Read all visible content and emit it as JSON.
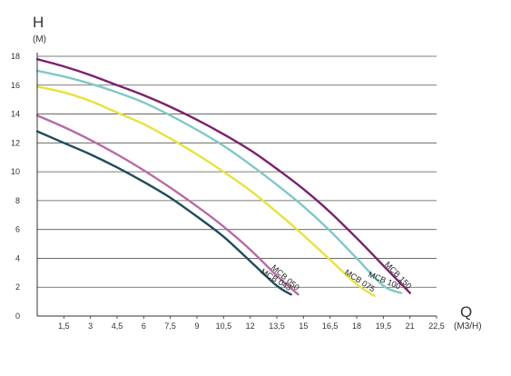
{
  "chart_data": {
    "type": "line",
    "title": "",
    "ylabel": "H",
    "yunit": "(M)",
    "xlabel": "Q",
    "xunit": "(M3/H)",
    "xlim": [
      0,
      22.5
    ],
    "ylim": [
      0,
      18
    ],
    "xticks": [
      "1,5",
      "3",
      "4,5",
      "6",
      "7,5",
      "9",
      "10,5",
      "12",
      "13,5",
      "15",
      "16,5",
      "18",
      "19,5",
      "21",
      "22,5"
    ],
    "yticks": [
      "0",
      "2",
      "4",
      "6",
      "8",
      "10",
      "12",
      "14",
      "16",
      "18"
    ],
    "grid": "horizontal",
    "legend": "none",
    "series": [
      {
        "name": "MCB 150",
        "color": "#7b1f6e",
        "x": [
          0,
          1.5,
          3,
          4.5,
          6,
          7.5,
          9,
          10.5,
          12,
          13.5,
          15,
          16.5,
          18,
          19.5,
          21
        ],
        "y": [
          17.8,
          17.3,
          16.7,
          16.0,
          15.3,
          14.5,
          13.6,
          12.6,
          11.5,
          10.2,
          8.8,
          7.2,
          5.4,
          3.5,
          1.6
        ]
      },
      {
        "name": "MCB 100",
        "color": "#7fc8c8",
        "x": [
          0,
          1.5,
          3,
          4.5,
          6,
          7.5,
          9,
          10.5,
          12,
          13.5,
          15,
          16.5,
          18,
          19.5,
          20.5
        ],
        "y": [
          17.0,
          16.6,
          16.1,
          15.5,
          14.8,
          13.9,
          12.9,
          11.8,
          10.5,
          9.1,
          7.6,
          5.9,
          4.0,
          2.1,
          1.6
        ]
      },
      {
        "name": "MCB 075",
        "color": "#e8e23a",
        "x": [
          0,
          1.5,
          3,
          4.5,
          6,
          7.5,
          9,
          10.5,
          12,
          13.5,
          15,
          16.5,
          18,
          19
        ],
        "y": [
          15.9,
          15.5,
          14.9,
          14.1,
          13.3,
          12.3,
          11.2,
          10.0,
          8.7,
          7.2,
          5.6,
          3.9,
          2.2,
          1.4
        ]
      },
      {
        "name": "MCB 050",
        "color": "#b96aa6",
        "x": [
          0,
          1.5,
          3,
          4.5,
          6,
          7.5,
          9,
          10.5,
          12,
          13.5,
          14.7
        ],
        "y": [
          13.9,
          13.1,
          12.2,
          11.2,
          10.1,
          8.9,
          7.6,
          6.2,
          4.6,
          2.8,
          1.5
        ]
      },
      {
        "name": "MCB 043",
        "color": "#1f4b5c",
        "x": [
          0,
          1.5,
          3,
          4.5,
          6,
          7.5,
          9,
          10.5,
          12,
          13.5,
          14.3
        ],
        "y": [
          12.8,
          12.0,
          11.2,
          10.3,
          9.3,
          8.2,
          6.9,
          5.5,
          3.8,
          2.1,
          1.5
        ]
      }
    ]
  }
}
